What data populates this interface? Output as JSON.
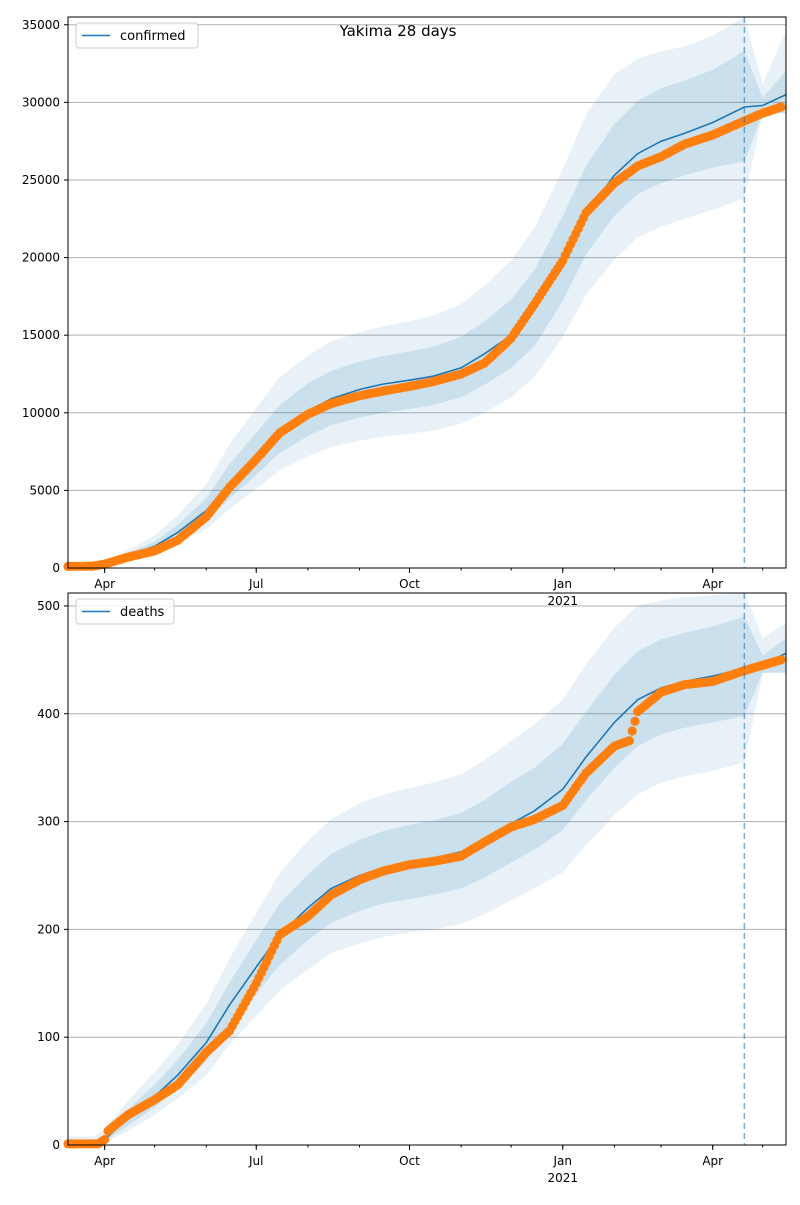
{
  "colors": {
    "model": "#1f77b4",
    "observed": "#ff7f0e",
    "band": "#1f77b4",
    "grid": "#b0b0b0",
    "forecast_line": "#1f77b4"
  },
  "chart_data": [
    {
      "type": "line",
      "title": "Yakima 28 days",
      "legend": {
        "label": "confirmed",
        "placement": "top-left"
      },
      "x_range": [
        "2020-03-10",
        "2021-05-15"
      ],
      "forecast_start": "2021-04-20",
      "ylim": [
        0,
        35500
      ],
      "y_ticks": [
        0,
        5000,
        10000,
        15000,
        20000,
        25000,
        30000,
        35000
      ],
      "grid": true,
      "x_ticks": [
        {
          "date": "2020-04-01",
          "label": "Apr",
          "sub": ""
        },
        {
          "date": "2020-07-01",
          "label": "Jul",
          "sub": ""
        },
        {
          "date": "2020-10-01",
          "label": "Oct",
          "sub": ""
        },
        {
          "date": "2021-01-01",
          "label": "Jan",
          "sub": "2021"
        },
        {
          "date": "2021-04-01",
          "label": "Apr",
          "sub": ""
        }
      ],
      "model": [
        [
          "2020-03-10",
          80
        ],
        [
          "2020-03-20",
          90
        ],
        [
          "2020-04-01",
          300
        ],
        [
          "2020-04-15",
          800
        ],
        [
          "2020-05-01",
          1400
        ],
        [
          "2020-05-15",
          2300
        ],
        [
          "2020-06-01",
          3700
        ],
        [
          "2020-06-15",
          5500
        ],
        [
          "2020-07-01",
          7200
        ],
        [
          "2020-07-15",
          8800
        ],
        [
          "2020-08-01",
          10100
        ],
        [
          "2020-08-15",
          10900
        ],
        [
          "2020-09-01",
          11500
        ],
        [
          "2020-09-15",
          11850
        ],
        [
          "2020-10-01",
          12100
        ],
        [
          "2020-10-15",
          12350
        ],
        [
          "2020-11-01",
          12900
        ],
        [
          "2020-11-15",
          13800
        ],
        [
          "2020-12-01",
          15000
        ],
        [
          "2020-12-15",
          16600
        ],
        [
          "2021-01-01",
          19800
        ],
        [
          "2021-01-15",
          22800
        ],
        [
          "2021-02-01",
          25300
        ],
        [
          "2021-02-15",
          26700
        ],
        [
          "2021-03-01",
          27500
        ],
        [
          "2021-03-15",
          28000
        ],
        [
          "2021-04-01",
          28700
        ],
        [
          "2021-04-20",
          29700
        ],
        [
          "2021-05-01",
          29800
        ],
        [
          "2021-05-15",
          30500
        ]
      ],
      "bands": [
        {
          "lower": [
            0,
            0,
            250,
            650,
            1150,
            1900,
            3000,
            4500,
            6000,
            7400,
            8500,
            9200,
            9700,
            10000,
            10250,
            10500,
            11000,
            11800,
            12900,
            14300,
            17200,
            20200,
            22700,
            24100,
            24800,
            25300,
            25800,
            26200,
            29300,
            29300
          ],
          "upper": [
            150,
            170,
            360,
            960,
            1700,
            2800,
            4500,
            6700,
            8700,
            10500,
            11900,
            12700,
            13300,
            13650,
            13950,
            14250,
            14900,
            15900,
            17300,
            19200,
            22700,
            25900,
            28600,
            30100,
            30900,
            31400,
            32100,
            33300,
            30300,
            32000
          ]
        },
        {
          "lower": [
            0,
            0,
            200,
            550,
            950,
            1600,
            2500,
            3800,
            5100,
            6300,
            7200,
            7800,
            8200,
            8450,
            8650,
            8850,
            9300,
            10000,
            11000,
            12300,
            14900,
            17600,
            19900,
            21300,
            22000,
            22500,
            23100,
            23800,
            29300,
            29300
          ],
          "upper": [
            250,
            270,
            430,
            1150,
            2100,
            3400,
            5400,
            8000,
            10300,
            12300,
            13700,
            14600,
            15200,
            15550,
            15900,
            16250,
            17000,
            18200,
            19800,
            21900,
            25700,
            29200,
            31800,
            32800,
            33300,
            33600,
            34300,
            35500,
            31200,
            34600
          ]
        }
      ],
      "observed": [
        [
          "2020-03-10",
          100
        ],
        [
          "2020-03-25",
          120
        ],
        [
          "2020-04-01",
          250
        ],
        [
          "2020-04-15",
          700
        ],
        [
          "2020-05-01",
          1100
        ],
        [
          "2020-05-15",
          1800
        ],
        [
          "2020-06-01",
          3300
        ],
        [
          "2020-06-15",
          5200
        ],
        [
          "2020-07-01",
          7000
        ],
        [
          "2020-07-15",
          8700
        ],
        [
          "2020-08-01",
          9900
        ],
        [
          "2020-08-15",
          10600
        ],
        [
          "2020-09-01",
          11100
        ],
        [
          "2020-09-15",
          11400
        ],
        [
          "2020-10-01",
          11700
        ],
        [
          "2020-10-15",
          12000
        ],
        [
          "2020-11-01",
          12500
        ],
        [
          "2020-11-15",
          13200
        ],
        [
          "2020-12-01",
          14800
        ],
        [
          "2020-12-15",
          17000
        ],
        [
          "2021-01-01",
          19800
        ],
        [
          "2021-01-15",
          22900
        ],
        [
          "2021-02-01",
          24800
        ],
        [
          "2021-02-15",
          25900
        ],
        [
          "2021-03-01",
          26500
        ],
        [
          "2021-03-15",
          27300
        ],
        [
          "2021-04-01",
          27900
        ],
        [
          "2021-04-20",
          28800
        ],
        [
          "2021-05-01",
          29300
        ],
        [
          "2021-05-12",
          29700
        ]
      ]
    },
    {
      "type": "line",
      "title": "",
      "legend": {
        "label": "deaths",
        "placement": "top-left"
      },
      "x_range": [
        "2020-03-10",
        "2021-05-15"
      ],
      "forecast_start": "2021-04-20",
      "ylim": [
        0,
        512
      ],
      "y_ticks": [
        0,
        100,
        200,
        300,
        400,
        500
      ],
      "grid": true,
      "x_ticks": [
        {
          "date": "2020-04-01",
          "label": "Apr",
          "sub": ""
        },
        {
          "date": "2020-07-01",
          "label": "Jul",
          "sub": ""
        },
        {
          "date": "2020-10-01",
          "label": "Oct",
          "sub": ""
        },
        {
          "date": "2021-01-01",
          "label": "Jan",
          "sub": "2021"
        },
        {
          "date": "2021-04-01",
          "label": "Apr",
          "sub": ""
        }
      ],
      "model": [
        [
          "2020-03-10",
          0
        ],
        [
          "2020-03-25",
          0
        ],
        [
          "2020-04-01",
          5
        ],
        [
          "2020-04-15",
          25
        ],
        [
          "2020-05-01",
          45
        ],
        [
          "2020-05-15",
          65
        ],
        [
          "2020-06-01",
          95
        ],
        [
          "2020-06-15",
          130
        ],
        [
          "2020-07-01",
          165
        ],
        [
          "2020-07-15",
          195
        ],
        [
          "2020-08-01",
          220
        ],
        [
          "2020-08-15",
          238
        ],
        [
          "2020-09-01",
          250
        ],
        [
          "2020-09-15",
          257
        ],
        [
          "2020-10-01",
          262
        ],
        [
          "2020-10-15",
          266
        ],
        [
          "2020-11-01",
          272
        ],
        [
          "2020-11-15",
          283
        ],
        [
          "2020-12-01",
          298
        ],
        [
          "2020-12-15",
          310
        ],
        [
          "2021-01-01",
          330
        ],
        [
          "2021-01-15",
          360
        ],
        [
          "2021-02-01",
          392
        ],
        [
          "2021-02-15",
          413
        ],
        [
          "2021-03-01",
          424
        ],
        [
          "2021-03-15",
          430
        ],
        [
          "2021-04-01",
          435
        ],
        [
          "2021-04-20",
          442
        ],
        [
          "2021-05-01",
          446
        ],
        [
          "2021-05-15",
          456
        ]
      ],
      "bands": [
        {
          "lower": [
            0,
            0,
            3,
            18,
            35,
            52,
            78,
            110,
            140,
            167,
            190,
            206,
            217,
            224,
            228,
            232,
            238,
            248,
            262,
            274,
            292,
            320,
            350,
            370,
            381,
            387,
            392,
            398,
            438,
            438
          ],
          "upper": [
            4,
            4,
            9,
            33,
            56,
            79,
            113,
            151,
            190,
            224,
            251,
            270,
            283,
            291,
            297,
            301,
            308,
            320,
            337,
            350,
            372,
            402,
            436,
            458,
            469,
            475,
            481,
            490,
            454,
            470
          ]
        },
        {
          "lower": [
            0,
            0,
            2,
            13,
            28,
            43,
            65,
            93,
            120,
            143,
            163,
            178,
            187,
            193,
            197,
            200,
            205,
            214,
            227,
            238,
            253,
            278,
            306,
            325,
            336,
            342,
            347,
            355,
            438,
            438
          ],
          "upper": [
            8,
            8,
            14,
            41,
            68,
            93,
            131,
            173,
            215,
            252,
            282,
            302,
            317,
            325,
            331,
            336,
            344,
            357,
            375,
            390,
            413,
            446,
            480,
            500,
            505,
            508,
            510,
            512,
            470,
            484
          ]
        }
      ],
      "observed": [
        [
          "2020-03-10",
          1
        ],
        [
          "2020-03-28",
          1
        ],
        [
          "2020-04-01",
          5
        ],
        [
          "2020-04-03",
          13
        ],
        [
          "2020-04-15",
          28
        ],
        [
          "2020-05-01",
          42
        ],
        [
          "2020-05-15",
          56
        ],
        [
          "2020-06-01",
          86
        ],
        [
          "2020-06-15",
          106
        ],
        [
          "2020-07-01",
          150
        ],
        [
          "2020-07-15",
          195
        ],
        [
          "2020-08-01",
          212
        ],
        [
          "2020-08-15",
          232
        ],
        [
          "2020-09-01",
          246
        ],
        [
          "2020-09-15",
          254
        ],
        [
          "2020-10-01",
          260
        ],
        [
          "2020-10-15",
          263
        ],
        [
          "2020-11-01",
          268
        ],
        [
          "2020-11-15",
          281
        ],
        [
          "2020-12-01",
          295
        ],
        [
          "2020-12-15",
          302
        ],
        [
          "2021-01-01",
          315
        ],
        [
          "2021-01-15",
          345
        ],
        [
          "2021-02-01",
          370
        ],
        [
          "2021-02-10",
          375
        ],
        [
          "2021-02-15",
          402
        ],
        [
          "2021-03-01",
          420
        ],
        [
          "2021-03-15",
          427
        ],
        [
          "2021-04-01",
          430
        ],
        [
          "2021-04-20",
          440
        ],
        [
          "2021-05-12",
          450
        ]
      ]
    }
  ]
}
